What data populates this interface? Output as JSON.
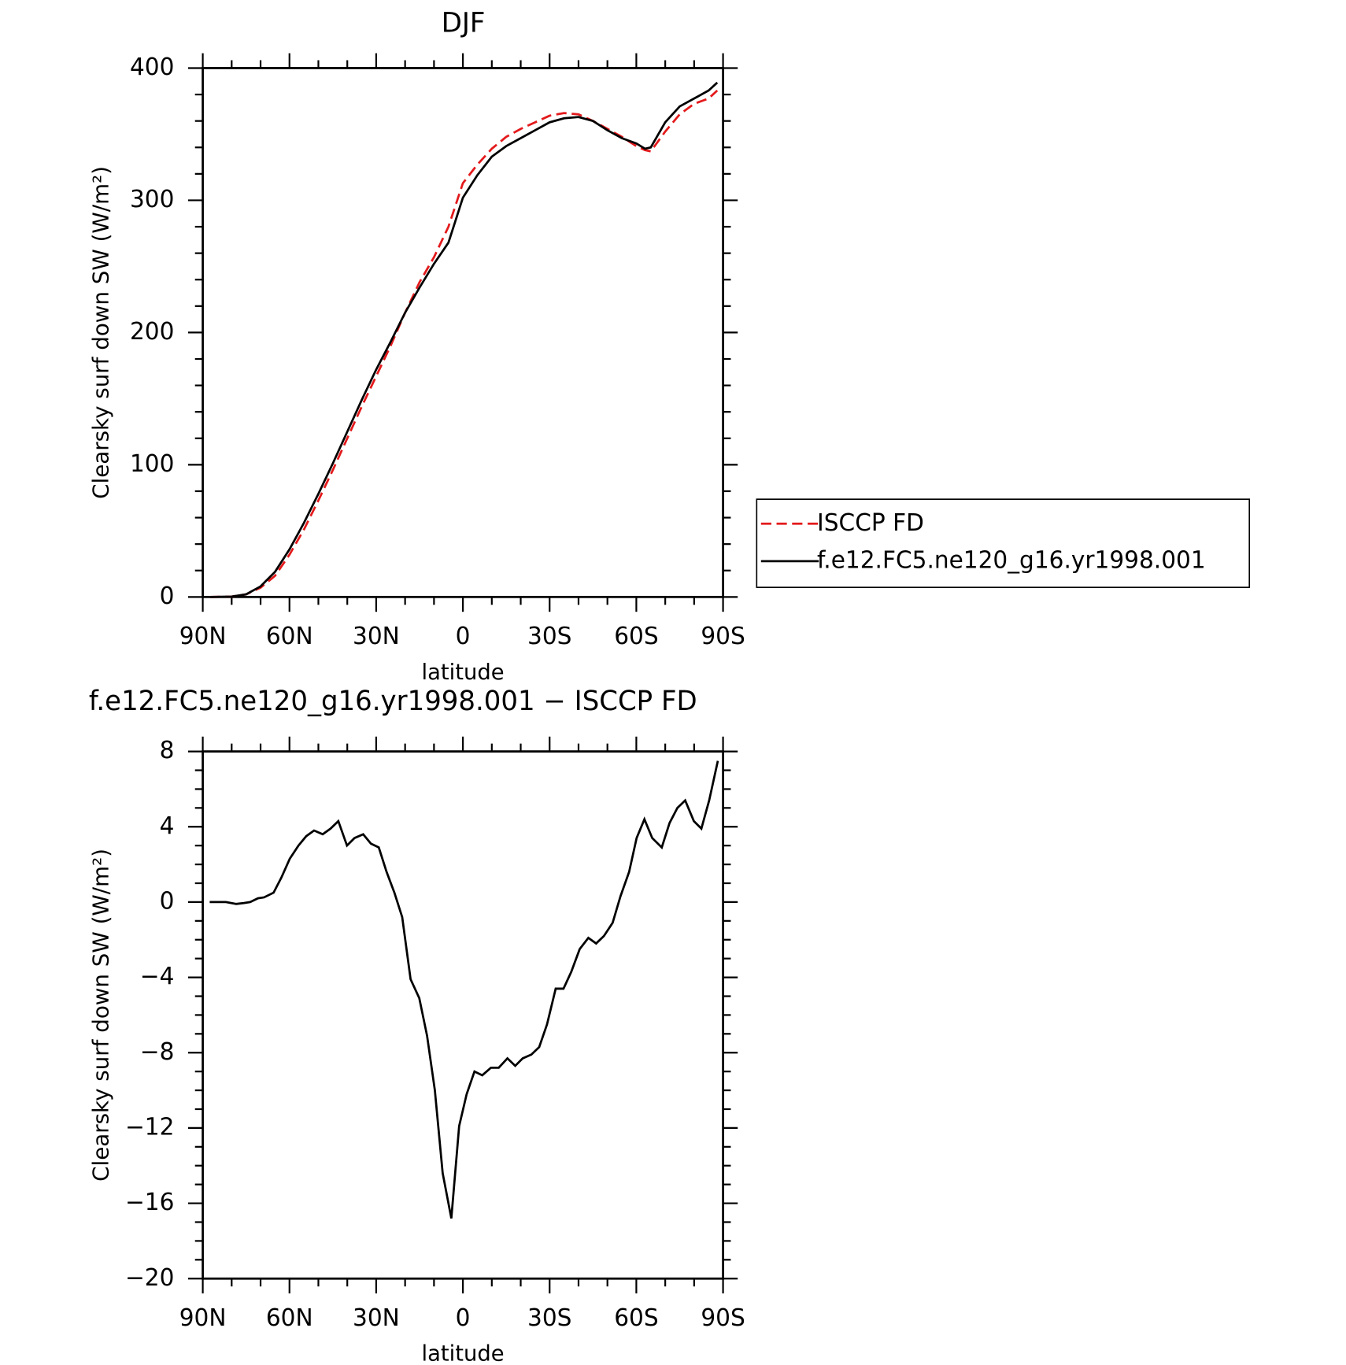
{
  "chart_data": [
    {
      "type": "line",
      "title": "DJF",
      "x_label": "latitude",
      "y_label": "Clearsky surf down SW (W/m²)",
      "x": [
        87.5,
        80,
        75,
        70,
        65,
        60,
        55,
        50,
        45,
        40,
        35,
        30,
        25,
        20,
        15,
        10,
        5,
        0,
        -5,
        -10,
        -15,
        -20,
        -25,
        -30,
        -35,
        -40,
        -45,
        -50,
        -55,
        -60,
        -63,
        -65,
        -70,
        -75,
        -80,
        -85,
        -88
      ],
      "series": [
        {
          "name": "ISCCP FD",
          "color": "#e31a1c",
          "line_style": "dashed",
          "values": [
            0,
            0.3,
            2,
            7,
            16,
            32,
            51,
            73,
            96,
            120,
            144,
            167,
            190,
            215,
            238,
            257,
            280,
            313,
            327,
            339,
            348,
            354,
            359,
            364,
            366,
            365,
            360,
            354,
            348,
            341,
            338,
            337,
            352,
            365,
            373,
            377,
            383
          ]
        },
        {
          "name": "f.e12.FC5.ne120_g16.yr1998.001",
          "color": "#000000",
          "line_style": "solid",
          "values": [
            0,
            0.3,
            2,
            8,
            19,
            36,
            56,
            78,
            101,
            125,
            149,
            172,
            193,
            215,
            234,
            252,
            268,
            302,
            319,
            333,
            341,
            347,
            353,
            359,
            362,
            363,
            360,
            353,
            347,
            343,
            339,
            340,
            359,
            371,
            377,
            383,
            389
          ]
        }
      ],
      "xlim": [
        90,
        -90
      ],
      "xticks": [
        {
          "value": 90,
          "label": "90N"
        },
        {
          "value": 60,
          "label": "60N"
        },
        {
          "value": 30,
          "label": "30N"
        },
        0,
        {
          "value": -30,
          "label": "30S"
        },
        {
          "value": -60,
          "label": "60S"
        },
        {
          "value": -90,
          "label": "90S"
        }
      ],
      "xminorticks": [
        80,
        70,
        50,
        40,
        20,
        10,
        -10,
        -20,
        -40,
        -50,
        -70,
        -80
      ],
      "ylim": [
        0,
        400
      ],
      "yticks": [
        0,
        100,
        200,
        300,
        400
      ],
      "yminorticks": [
        20,
        40,
        60,
        80,
        120,
        140,
        160,
        180,
        220,
        240,
        260,
        280,
        320,
        340,
        360,
        380
      ],
      "legend": "right"
    },
    {
      "type": "line",
      "title": "f.e12.FC5.ne120_g16.yr1998.001 − ISCCP FD",
      "x_label": "latitude",
      "y_label": "Clearsky surf down SW (W/m²)",
      "x": [
        87.6,
        82,
        78.4,
        75.7,
        73.6,
        70.9,
        68.8,
        65.5,
        62.8,
        59.9,
        56.9,
        54.2,
        51.5,
        48.5,
        45.8,
        43.1,
        40.1,
        37.5,
        34.5,
        31.8,
        29.1,
        26.4,
        23.7,
        21,
        18.1,
        15.1,
        12.4,
        9.7,
        7,
        4,
        1.3,
        -1.3,
        -4,
        -6.7,
        -9.7,
        -12.4,
        -15.4,
        -18.1,
        -20.7,
        -23.7,
        -26.4,
        -29.1,
        -32.1,
        -34.8,
        -37.5,
        -40.4,
        -43.4,
        -46.1,
        -48.8,
        -51.8,
        -54.5,
        -57.5,
        -60.1,
        -62.8,
        -65.5,
        -68.8,
        -71.5,
        -74.2,
        -76.9,
        -79.9,
        -82.5,
        -85.2,
        -88.2
      ],
      "series": [
        {
          "name": "f.e12.FC5.ne120_g16.yr1998.001 − ISCCP FD",
          "color": "#000000",
          "line_style": "solid",
          "values": [
            0,
            0,
            -0.1,
            -0.05,
            0,
            0.2,
            0.25,
            0.5,
            1.3,
            2.3,
            3.0,
            3.5,
            3.8,
            3.6,
            3.9,
            4.3,
            3.0,
            3.4,
            3.6,
            3.1,
            2.9,
            1.6,
            0.5,
            -0.8,
            -4.1,
            -5.1,
            -7.1,
            -10.0,
            -14.4,
            -16.8,
            -11.9,
            -10.2,
            -9.0,
            -9.2,
            -8.8,
            -8.8,
            -8.3,
            -8.7,
            -8.3,
            -8.1,
            -7.7,
            -6.5,
            -4.6,
            -4.6,
            -3.7,
            -2.5,
            -1.9,
            -2.2,
            -1.8,
            -1.1,
            0.3,
            1.6,
            3.4,
            4.4,
            3.4,
            2.9,
            4.2,
            5.0,
            5.4,
            4.3,
            3.9,
            5.4,
            7.5
          ]
        }
      ],
      "xlim": [
        90,
        -90
      ],
      "xticks": [
        {
          "value": 90,
          "label": "90N"
        },
        {
          "value": 60,
          "label": "60N"
        },
        {
          "value": 30,
          "label": "30N"
        },
        0,
        {
          "value": -30,
          "label": "30S"
        },
        {
          "value": -60,
          "label": "60S"
        },
        {
          "value": -90,
          "label": "90S"
        }
      ],
      "xminorticks": [
        80,
        70,
        50,
        40,
        20,
        10,
        -10,
        -20,
        -40,
        -50,
        -70,
        -80
      ],
      "ylim": [
        -20,
        8
      ],
      "yticks": [
        {
          "value": -20,
          "label": "−20"
        },
        {
          "value": -16,
          "label": "−16"
        },
        {
          "value": -12,
          "label": "−12"
        },
        {
          "value": -8,
          "label": "−8"
        },
        {
          "value": -4,
          "label": "−4"
        },
        0,
        4,
        8
      ],
      "yminorticks": [
        -19,
        -18,
        -17,
        -15,
        -14,
        -13,
        -11,
        -10,
        -9,
        -7,
        -6,
        -5,
        -3,
        -2,
        -1,
        1,
        2,
        3,
        5,
        6,
        7
      ]
    }
  ]
}
